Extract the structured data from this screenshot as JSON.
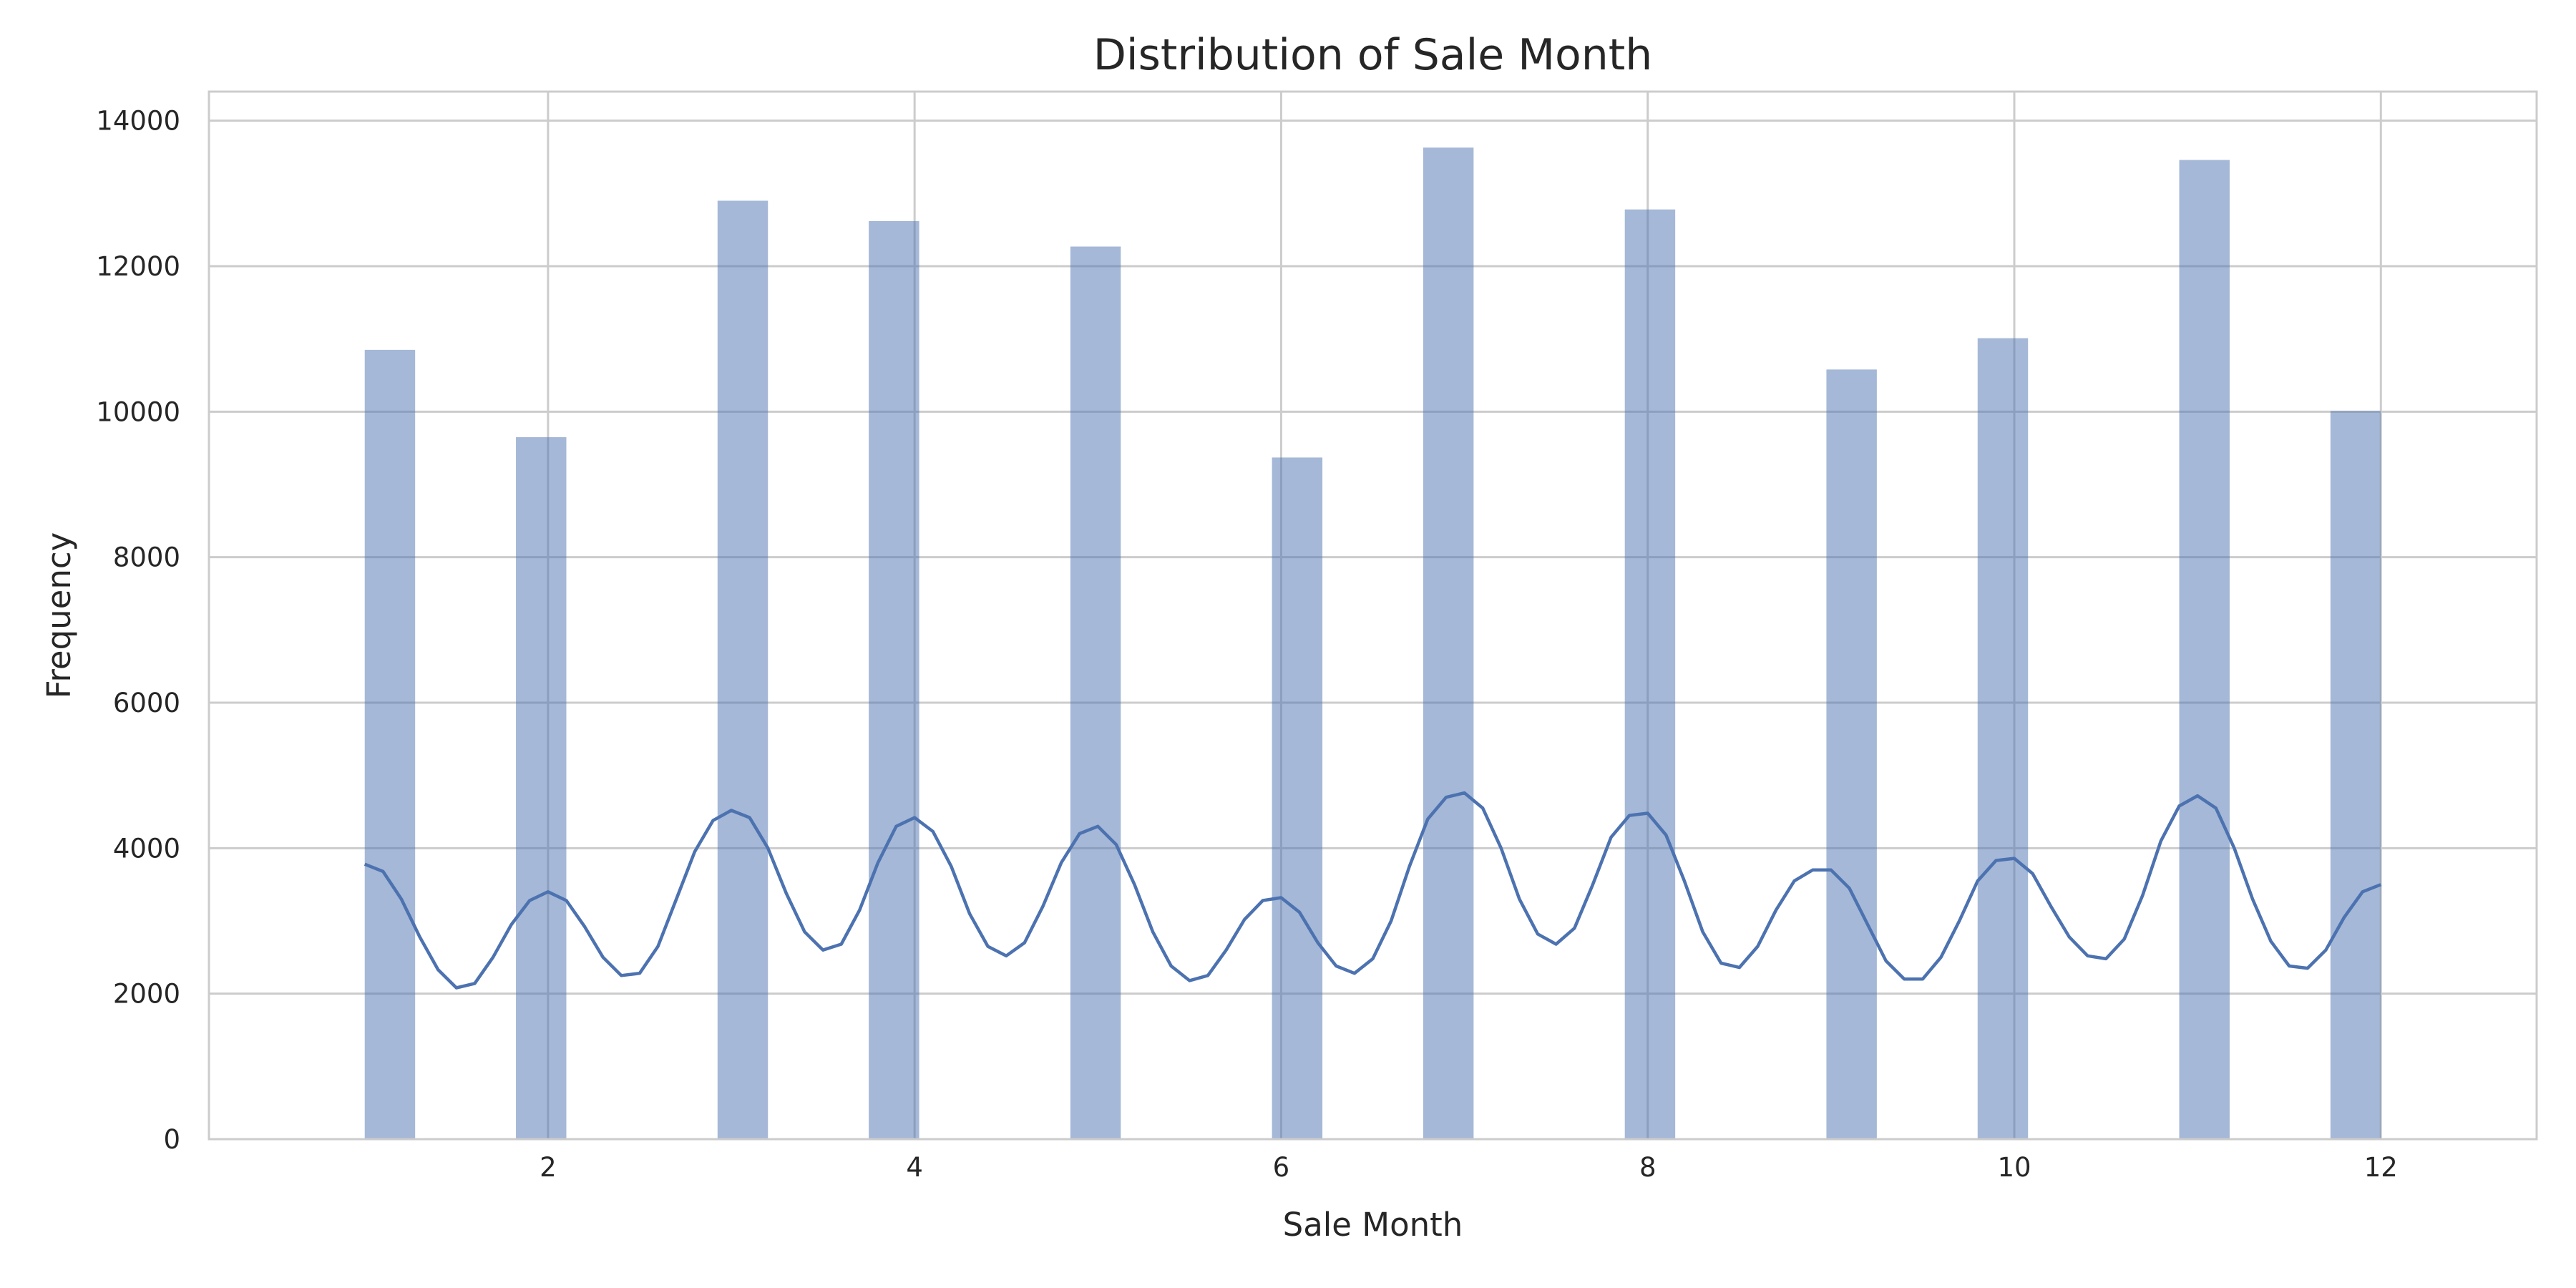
{
  "chart_data": {
    "type": "histogram",
    "title": "Distribution of Sale Month",
    "xlabel": "Sale Month",
    "ylabel": "Frequency",
    "xlim": [
      0.15,
      12.85
    ],
    "ylim": [
      0,
      14400
    ],
    "x_ticks": [
      2,
      4,
      6,
      8,
      10,
      12
    ],
    "y_ticks": [
      0,
      2000,
      4000,
      6000,
      8000,
      10000,
      12000,
      14000
    ],
    "grid": true,
    "bar_color": "#4c72b0",
    "line_color": "#4c72b0",
    "bin_width": 0.275,
    "bars": [
      {
        "x0": 1.0,
        "value": 10850
      },
      {
        "x0": 1.825,
        "value": 9650
      },
      {
        "x0": 2.925,
        "value": 12900
      },
      {
        "x0": 3.75,
        "value": 12620
      },
      {
        "x0": 4.85,
        "value": 12270
      },
      {
        "x0": 5.95,
        "value": 9370
      },
      {
        "x0": 6.775,
        "value": 13630
      },
      {
        "x0": 7.875,
        "value": 12780
      },
      {
        "x0": 8.975,
        "value": 10580
      },
      {
        "x0": 9.8,
        "value": 11010
      },
      {
        "x0": 10.9,
        "value": 13460
      },
      {
        "x0": 11.725,
        "value": 10010
      }
    ],
    "kde": {
      "x": [
        1.0,
        1.1,
        1.2,
        1.3,
        1.4,
        1.5,
        1.6,
        1.7,
        1.8,
        1.9,
        2.0,
        2.1,
        2.2,
        2.3,
        2.4,
        2.5,
        2.6,
        2.7,
        2.8,
        2.9,
        3.0,
        3.1,
        3.2,
        3.3,
        3.4,
        3.5,
        3.6,
        3.7,
        3.8,
        3.9,
        4.0,
        4.1,
        4.2,
        4.3,
        4.4,
        4.5,
        4.6,
        4.7,
        4.8,
        4.9,
        5.0,
        5.1,
        5.2,
        5.3,
        5.4,
        5.5,
        5.6,
        5.7,
        5.8,
        5.9,
        6.0,
        6.1,
        6.2,
        6.3,
        6.4,
        6.5,
        6.6,
        6.7,
        6.8,
        6.9,
        7.0,
        7.1,
        7.2,
        7.3,
        7.4,
        7.5,
        7.6,
        7.7,
        7.8,
        7.9,
        8.0,
        8.1,
        8.2,
        8.3,
        8.4,
        8.5,
        8.6,
        8.7,
        8.8,
        8.9,
        9.0,
        9.1,
        9.2,
        9.3,
        9.4,
        9.5,
        9.6,
        9.7,
        9.8,
        9.9,
        10.0,
        10.1,
        10.2,
        10.3,
        10.4,
        10.5,
        10.6,
        10.7,
        10.8,
        10.9,
        11.0,
        11.1,
        11.2,
        11.3,
        11.4,
        11.5,
        11.6,
        11.7,
        11.8,
        11.9,
        12.0
      ],
      "y": [
        3780,
        3680,
        3300,
        2780,
        2330,
        2080,
        2140,
        2500,
        2950,
        3280,
        3400,
        3280,
        2920,
        2500,
        2250,
        2280,
        2650,
        3300,
        3950,
        4380,
        4520,
        4420,
        4000,
        3380,
        2850,
        2600,
        2680,
        3150,
        3800,
        4300,
        4420,
        4230,
        3750,
        3100,
        2650,
        2520,
        2700,
        3200,
        3800,
        4200,
        4300,
        4050,
        3500,
        2850,
        2380,
        2180,
        2250,
        2600,
        3020,
        3280,
        3320,
        3120,
        2700,
        2380,
        2280,
        2480,
        3000,
        3750,
        4400,
        4700,
        4760,
        4550,
        4000,
        3300,
        2820,
        2680,
        2900,
        3500,
        4150,
        4450,
        4480,
        4180,
        3550,
        2850,
        2420,
        2360,
        2650,
        3150,
        3550,
        3700,
        3700,
        3450,
        2950,
        2450,
        2200,
        2200,
        2500,
        3000,
        3550,
        3830,
        3860,
        3650,
        3200,
        2780,
        2520,
        2480,
        2750,
        3350,
        4100,
        4580,
        4720,
        4550,
        4000,
        3300,
        2720,
        2380,
        2350,
        2600,
        3050,
        3400,
        3500
      ]
    }
  }
}
